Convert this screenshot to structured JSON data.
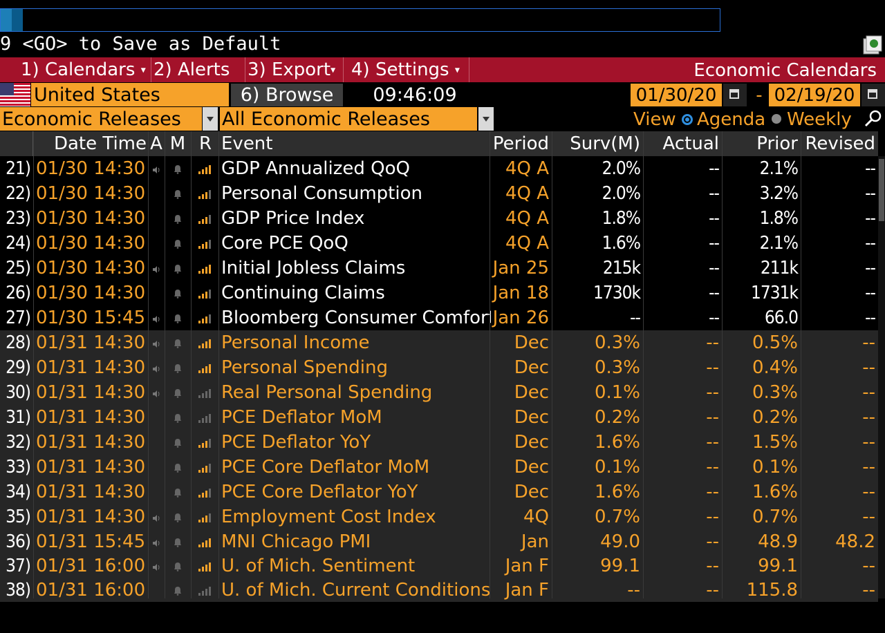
{
  "command_line": {
    "value": ""
  },
  "hint_text": "9 <GO> to Save as Default",
  "menu": [
    {
      "num": "1)",
      "label": "Calendars",
      "dropdown": true
    },
    {
      "num": "2)",
      "label": "Alerts",
      "dropdown": false
    },
    {
      "num": "3)",
      "label": "Export",
      "dropdown": true
    },
    {
      "num": "4)",
      "label": "Settings",
      "dropdown": true
    }
  ],
  "app_title": "Economic Calendars",
  "country": "United States",
  "browse": {
    "num": "6)",
    "label": "Browse"
  },
  "clock": "09:46:09",
  "date_from": "01/30/20",
  "date_sep": "-",
  "date_to": "02/19/20",
  "filter_type": "Economic Releases",
  "filter_releases": "All Economic Releases",
  "view": {
    "label": "View",
    "agenda": "Agenda",
    "weekly": "Weekly",
    "selected": "Agenda"
  },
  "columns": {
    "date_time": "Date Time",
    "a": "A",
    "m": "M",
    "r": "R",
    "event": "Event",
    "period": "Period",
    "surv": "Surv(M)",
    "actual": "Actual",
    "prior": "Prior",
    "revised": "Revised"
  },
  "colors": {
    "accent": "#f6a22a",
    "menubar": "#a3122a",
    "row_alt": "#262626"
  },
  "rows": [
    {
      "idx": "21)",
      "dt": "01/30 14:30",
      "alert": true,
      "rel": "high",
      "event": "GDP Annualized QoQ",
      "period": "4Q A",
      "surv": "2.0%",
      "actual": "--",
      "prior": "2.1%",
      "revised": "--"
    },
    {
      "idx": "22)",
      "dt": "01/30 14:30",
      "alert": false,
      "rel": "med",
      "event": "Personal Consumption",
      "period": "4Q A",
      "surv": "2.0%",
      "actual": "--",
      "prior": "3.2%",
      "revised": "--"
    },
    {
      "idx": "23)",
      "dt": "01/30 14:30",
      "alert": false,
      "rel": "med",
      "event": "GDP Price Index",
      "period": "4Q A",
      "surv": "1.8%",
      "actual": "--",
      "prior": "1.8%",
      "revised": "--"
    },
    {
      "idx": "24)",
      "dt": "01/30 14:30",
      "alert": false,
      "rel": "med",
      "event": "Core PCE QoQ",
      "period": "4Q A",
      "surv": "1.6%",
      "actual": "--",
      "prior": "2.1%",
      "revised": "--"
    },
    {
      "idx": "25)",
      "dt": "01/30 14:30",
      "alert": true,
      "rel": "high",
      "event": "Initial Jobless Claims",
      "period": "Jan 25",
      "surv": "215k",
      "actual": "--",
      "prior": "211k",
      "revised": "--"
    },
    {
      "idx": "26)",
      "dt": "01/30 14:30",
      "alert": false,
      "rel": "med",
      "event": "Continuing Claims",
      "period": "Jan 18",
      "surv": "1730k",
      "actual": "--",
      "prior": "1731k",
      "revised": "--"
    },
    {
      "idx": "27)",
      "dt": "01/30 15:45",
      "alert": true,
      "rel": "med",
      "event": "Bloomberg Consumer Comfort",
      "period": "Jan 26",
      "surv": "--",
      "actual": "--",
      "prior": "66.0",
      "revised": "--"
    },
    {
      "idx": "28)",
      "dt": "01/31 14:30",
      "alert": true,
      "rel": "high",
      "event": "Personal Income",
      "period": "Dec",
      "surv": "0.3%",
      "actual": "--",
      "prior": "0.5%",
      "revised": "--"
    },
    {
      "idx": "29)",
      "dt": "01/31 14:30",
      "alert": true,
      "rel": "high",
      "event": "Personal Spending",
      "period": "Dec",
      "surv": "0.3%",
      "actual": "--",
      "prior": "0.4%",
      "revised": "--"
    },
    {
      "idx": "30)",
      "dt": "01/31 14:30",
      "alert": true,
      "rel": "low",
      "event": "Real Personal Spending",
      "period": "Dec",
      "surv": "0.1%",
      "actual": "--",
      "prior": "0.3%",
      "revised": "--"
    },
    {
      "idx": "31)",
      "dt": "01/31 14:30",
      "alert": false,
      "rel": "low",
      "event": "PCE Deflator MoM",
      "period": "Dec",
      "surv": "0.2%",
      "actual": "--",
      "prior": "0.2%",
      "revised": "--"
    },
    {
      "idx": "32)",
      "dt": "01/31 14:30",
      "alert": false,
      "rel": "med",
      "event": "PCE Deflator YoY",
      "period": "Dec",
      "surv": "1.6%",
      "actual": "--",
      "prior": "1.5%",
      "revised": "--"
    },
    {
      "idx": "33)",
      "dt": "01/31 14:30",
      "alert": false,
      "rel": "med",
      "event": "PCE Core Deflator MoM",
      "period": "Dec",
      "surv": "0.1%",
      "actual": "--",
      "prior": "0.1%",
      "revised": "--"
    },
    {
      "idx": "34)",
      "dt": "01/31 14:30",
      "alert": false,
      "rel": "med",
      "event": "PCE Core Deflator YoY",
      "period": "Dec",
      "surv": "1.6%",
      "actual": "--",
      "prior": "1.6%",
      "revised": "--"
    },
    {
      "idx": "35)",
      "dt": "01/31 14:30",
      "alert": true,
      "rel": "med",
      "event": "Employment Cost Index",
      "period": "4Q",
      "surv": "0.7%",
      "actual": "--",
      "prior": "0.7%",
      "revised": "--"
    },
    {
      "idx": "36)",
      "dt": "01/31 15:45",
      "alert": true,
      "rel": "high",
      "event": "MNI Chicago PMI",
      "period": "Jan",
      "surv": "49.0",
      "actual": "--",
      "prior": "48.9",
      "revised": "48.2"
    },
    {
      "idx": "37)",
      "dt": "01/31 16:00",
      "alert": true,
      "rel": "high",
      "event": "U. of Mich. Sentiment",
      "period": "Jan F",
      "surv": "99.1",
      "actual": "--",
      "prior": "99.1",
      "revised": "--"
    },
    {
      "idx": "38)",
      "dt": "01/31 16:00",
      "alert": false,
      "rel": "low",
      "event": "U. of Mich. Current Conditions",
      "period": "Jan F",
      "surv": "--",
      "actual": "--",
      "prior": "115.8",
      "revised": "--"
    }
  ]
}
